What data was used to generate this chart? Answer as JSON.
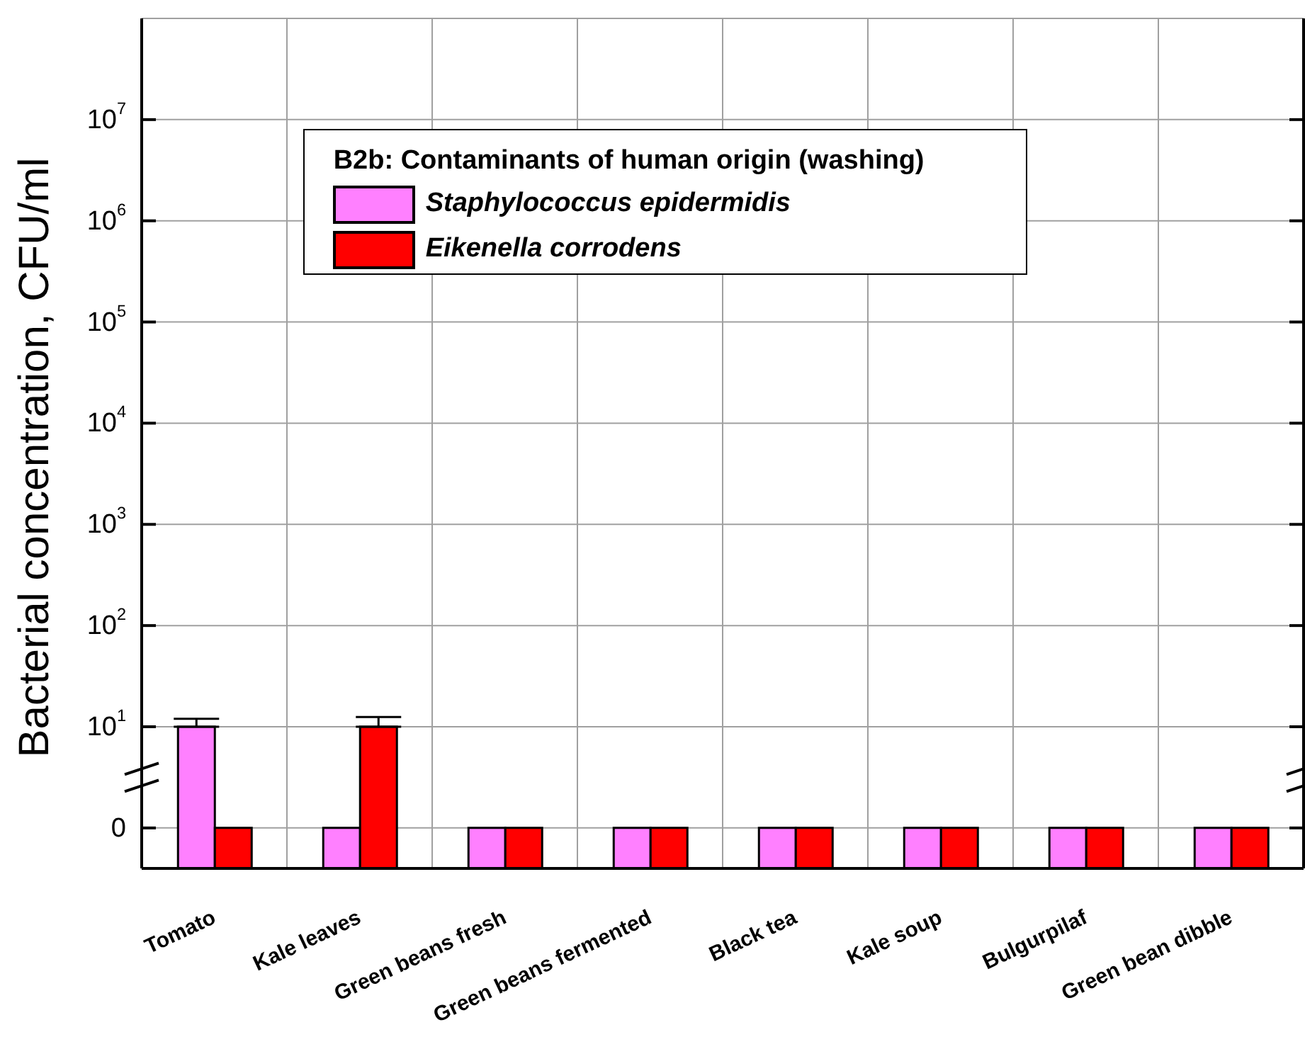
{
  "chart_data": {
    "type": "bar",
    "ylabel": "Bacterial concentration, CFU/ml",
    "legend_title": "B2b: Contaminants of human origin (washing)",
    "categories": [
      "Tomato",
      "Kale leaves",
      "Green beans fresh",
      "Green beans fermented",
      "Black tea",
      "Kale soup",
      "Bulgurpilaf",
      "Green bean dibble"
    ],
    "series": [
      {
        "name": "Staphylococcus epidermidis",
        "color": "#ff80ff",
        "values": [
          10,
          0,
          0,
          0,
          0,
          0,
          0,
          0
        ],
        "errors": [
          [
            10,
            12
          ],
          null,
          null,
          null,
          null,
          null,
          null,
          null
        ]
      },
      {
        "name": "Eikenella corrodens",
        "color": "#ff0000",
        "values": [
          0,
          10,
          0,
          0,
          0,
          0,
          0,
          0
        ],
        "errors": [
          null,
          [
            10,
            12.5
          ],
          null,
          null,
          null,
          null,
          null,
          null
        ]
      }
    ],
    "log": true,
    "ylim": [
      0,
      100000000
    ],
    "yticks": [
      0,
      {
        "value": 10,
        "label": "10$^{1}$"
      },
      {
        "value": 100,
        "label": "10$^{2}$"
      },
      {
        "value": 1000,
        "label": "10$^{3}$"
      },
      {
        "value": 10000,
        "label": "10$^{4}$"
      },
      {
        "value": 100000,
        "label": "10$^{5}$"
      },
      {
        "value": 1000000,
        "label": "10$^{6}$"
      },
      {
        "value": 10000000,
        "label": "10$^{7}$"
      }
    ],
    "grid": true,
    "legend": "top"
  }
}
